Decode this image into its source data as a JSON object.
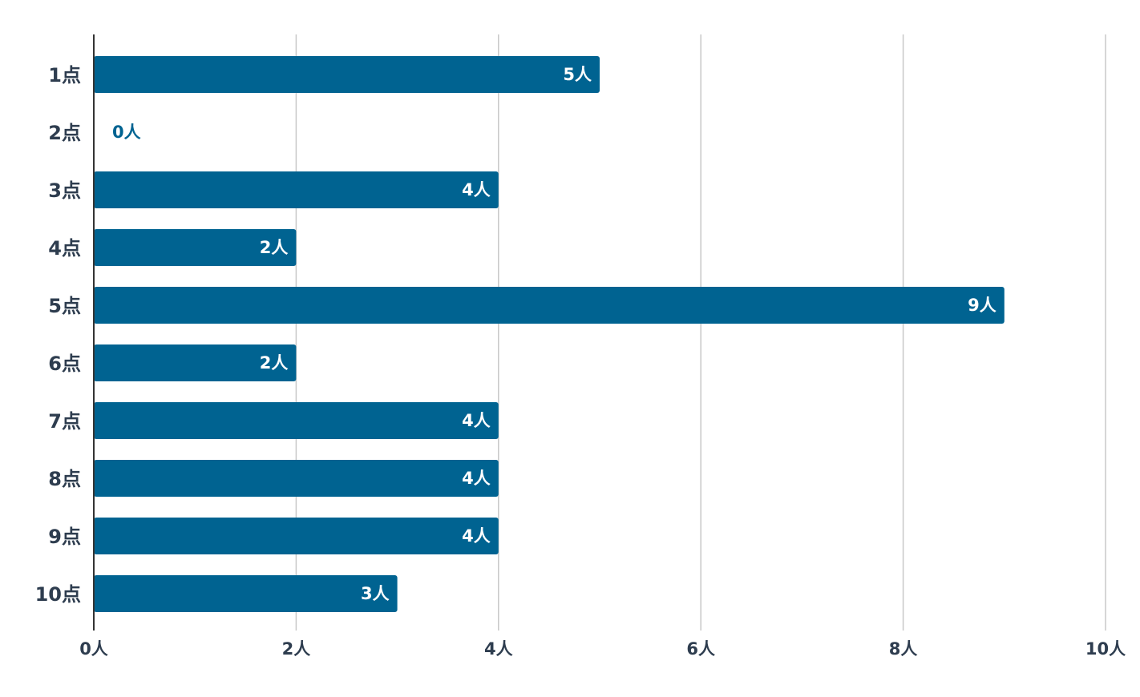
{
  "chart_data": {
    "type": "bar",
    "orientation": "horizontal",
    "title": "",
    "xlabel": "",
    "ylabel": "",
    "categories": [
      "1点",
      "2点",
      "3点",
      "4点",
      "5点",
      "6点",
      "7点",
      "8点",
      "9点",
      "10点"
    ],
    "values": [
      5,
      0,
      4,
      2,
      9,
      2,
      4,
      4,
      4,
      3
    ],
    "value_labels": [
      "5人",
      "0人",
      "4人",
      "2人",
      "9人",
      "2人",
      "4人",
      "4人",
      "4人",
      "3人"
    ],
    "x_ticks": [
      0,
      2,
      4,
      6,
      8,
      10
    ],
    "x_tick_labels": [
      "0人",
      "2人",
      "4人",
      "6人",
      "8人",
      "10人"
    ],
    "xlim": [
      0,
      10
    ],
    "grid": true,
    "legend": "none",
    "colors": {
      "bar": "#006391",
      "bar_label_inside": "#ffffff",
      "bar_label_outside": "#006391",
      "axis_text": "#2e3d4f",
      "grid": "#c8c8c8",
      "axis_line": "#333333"
    }
  }
}
